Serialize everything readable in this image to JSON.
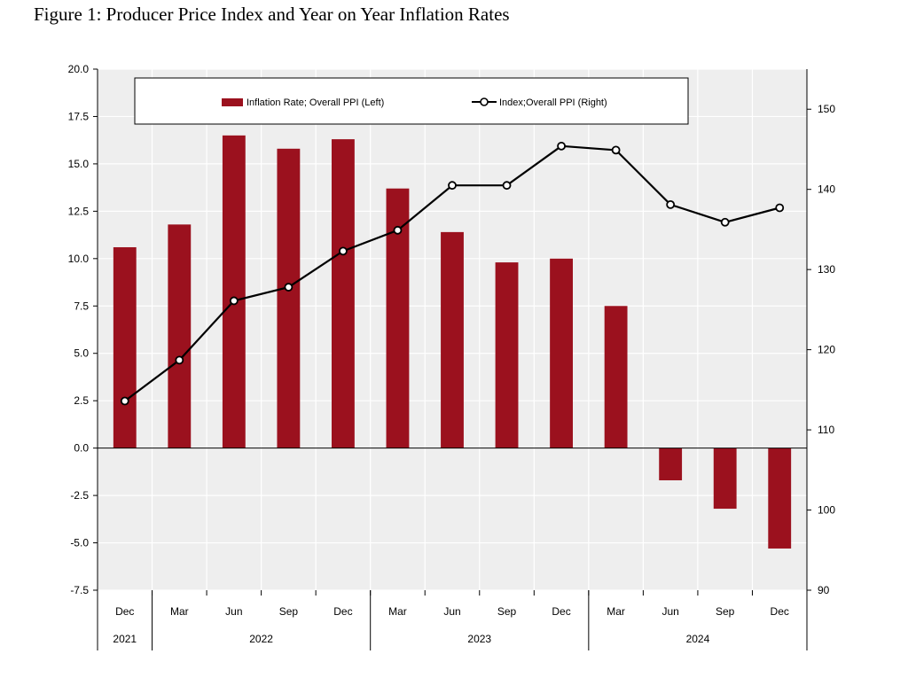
{
  "figure_title": "Figure 1:  Producer Price Index and Year on Year Inflation Rates",
  "colors": {
    "bar": "#9B111E",
    "line": "#000000",
    "plot_bg": "#EEEEEE",
    "grid": "#FFFFFF"
  },
  "chart_data": {
    "type": "bar+line",
    "title": "Figure 1:  Producer Price Index and Year on Year Inflation Rates",
    "categories": [
      "Dec",
      "Mar",
      "Jun",
      "Sep",
      "Dec",
      "Mar",
      "Jun",
      "Sep",
      "Dec",
      "Mar",
      "Jun",
      "Sep",
      "Dec"
    ],
    "year_groups": [
      {
        "label": "2021",
        "span": 1
      },
      {
        "label": "2022",
        "span": 4
      },
      {
        "label": "2023",
        "span": 4
      },
      {
        "label": "2024",
        "span": 4
      }
    ],
    "series": [
      {
        "name": "Inflation Rate; Overall PPI (Left)",
        "type": "bar",
        "axis": "left",
        "values": [
          10.6,
          11.8,
          16.5,
          15.8,
          16.3,
          13.7,
          11.4,
          9.8,
          10.0,
          7.5,
          -1.7,
          -3.2,
          -5.3
        ]
      },
      {
        "name": "Index;Overall PPI (Right)",
        "type": "line",
        "axis": "right",
        "values": [
          113.6,
          118.7,
          126.1,
          127.8,
          132.3,
          134.9,
          140.5,
          140.5,
          145.4,
          144.9,
          138.1,
          135.9,
          137.7
        ]
      }
    ],
    "left_axis": {
      "ylim": [
        -7.5,
        20.0
      ],
      "ticks": [
        "20.0",
        "17.5",
        "15.0",
        "12.5",
        "10.0",
        "7.5",
        "5.0",
        "2.5",
        "0.0",
        "-2.5",
        "-5.0",
        "-7.5"
      ]
    },
    "right_axis": {
      "ylim": [
        90,
        155
      ],
      "ticks": [
        "150",
        "140",
        "130",
        "120",
        "110",
        "100",
        "90"
      ]
    },
    "legend": {
      "position": "top",
      "bar_label": "Inflation Rate; Overall PPI (Left)",
      "line_label": "Index;Overall PPI (Right)"
    }
  }
}
